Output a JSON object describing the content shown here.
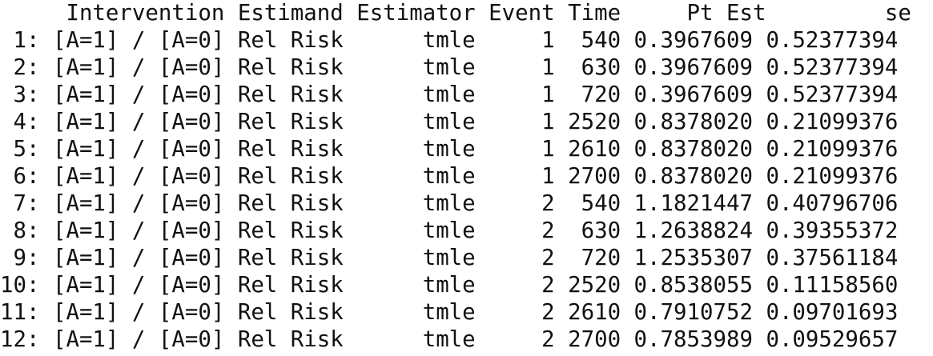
{
  "table": {
    "header": "     Intervention Estimand Estimator Event Time     Pt Est         se",
    "rows": [
      " 1: [A=1] / [A=0] Rel Risk      tmle     1  540 0.3967609 0.52377394",
      " 2: [A=1] / [A=0] Rel Risk      tmle     1  630 0.3967609 0.52377394",
      " 3: [A=1] / [A=0] Rel Risk      tmle     1  720 0.3967609 0.52377394",
      " 4: [A=1] / [A=0] Rel Risk      tmle     1 2520 0.8378020 0.21099376",
      " 5: [A=1] / [A=0] Rel Risk      tmle     1 2610 0.8378020 0.21099376",
      " 6: [A=1] / [A=0] Rel Risk      tmle     1 2700 0.8378020 0.21099376",
      " 7: [A=1] / [A=0] Rel Risk      tmle     2  540 1.1821447 0.40796706",
      " 8: [A=1] / [A=0] Rel Risk      tmle     2  630 1.2638824 0.39355372",
      " 9: [A=1] / [A=0] Rel Risk      tmle     2  720 1.2535307 0.37561184",
      "10: [A=1] / [A=0] Rel Risk      tmle     2 2520 0.8538055 0.11158560",
      "11: [A=1] / [A=0] Rel Risk      tmle     2 2610 0.7910752 0.09701693",
      "12: [A=1] / [A=0] Rel Risk      tmle     2 2700 0.7853989 0.09529657"
    ]
  }
}
